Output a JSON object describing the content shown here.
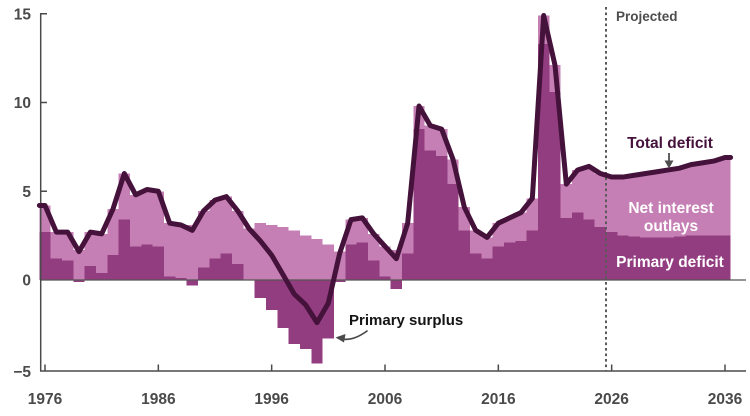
{
  "labels": {
    "projected": "Projected",
    "total_deficit": "Total deficit",
    "net_interest": [
      "Net interest",
      "outlays"
    ],
    "primary_deficit": "Primary deficit",
    "primary_surplus": "Primary surplus"
  },
  "colors": {
    "total_deficit_line": "#44123a",
    "primary_deficit_bar": "#933d81",
    "net_interest_bar": "#c67fb4",
    "axis": "#4a4a4a",
    "zero_line": "#555555",
    "divider": "#5a5a5a",
    "annotation_arrow": "#4f4f4f"
  },
  "chart_data": {
    "type": "bar",
    "description": "Stacked bars (primary deficit + net interest outlays) with total-deficit line overlay; negative bars are primary surpluses",
    "xlim": [
      1976,
      2036
    ],
    "ylim": [
      -5,
      15
    ],
    "x_ticks": [
      1976,
      1986,
      1996,
      2006,
      2016,
      2026,
      2036
    ],
    "y_ticks": [
      15,
      10,
      5,
      0,
      -5
    ],
    "grid": false,
    "legend_position": "inline-annotations",
    "projection_divider_year": 2025.5,
    "years": [
      1976,
      1977,
      1978,
      1979,
      1980,
      1981,
      1982,
      1983,
      1984,
      1985,
      1986,
      1987,
      1988,
      1989,
      1990,
      1991,
      1992,
      1993,
      1994,
      1995,
      1996,
      1997,
      1998,
      1999,
      2000,
      2001,
      2002,
      2003,
      2004,
      2005,
      2006,
      2007,
      2008,
      2009,
      2010,
      2011,
      2012,
      2013,
      2014,
      2015,
      2016,
      2017,
      2018,
      2019,
      2020,
      2021,
      2022,
      2023,
      2024,
      2025,
      2026,
      2027,
      2028,
      2029,
      2030,
      2031,
      2032,
      2033,
      2034,
      2035,
      2036
    ],
    "series": [
      {
        "name": "Total deficit",
        "type": "line",
        "values": [
          4.2,
          2.7,
          2.7,
          1.6,
          2.7,
          2.6,
          4.0,
          6.0,
          4.8,
          5.1,
          5.0,
          3.2,
          3.1,
          2.8,
          3.9,
          4.5,
          4.7,
          3.9,
          2.9,
          2.2,
          1.4,
          0.3,
          -0.8,
          -1.4,
          -2.4,
          -1.3,
          1.5,
          3.4,
          3.5,
          2.6,
          1.9,
          1.2,
          3.2,
          9.8,
          8.7,
          8.5,
          6.8,
          4.1,
          2.8,
          2.4,
          3.2,
          3.5,
          3.8,
          4.6,
          14.9,
          12.1,
          5.4,
          6.2,
          6.4,
          6.0,
          5.8,
          5.8,
          5.9,
          6.0,
          6.1,
          6.2,
          6.3,
          6.5,
          6.6,
          6.7,
          6.9
        ]
      },
      {
        "name": "Primary deficit",
        "type": "bar",
        "values": [
          2.7,
          1.2,
          1.1,
          -0.1,
          0.8,
          0.4,
          1.4,
          3.4,
          1.9,
          2.0,
          1.9,
          0.2,
          0.1,
          -0.3,
          0.7,
          1.2,
          1.5,
          0.9,
          0.0,
          -1.0,
          -1.7,
          -2.7,
          -3.6,
          -3.9,
          -4.7,
          -3.3,
          -0.1,
          2.0,
          2.1,
          1.1,
          0.2,
          -0.5,
          1.5,
          8.5,
          7.3,
          7.0,
          5.4,
          2.8,
          1.5,
          1.2,
          1.9,
          2.1,
          2.2,
          2.8,
          13.3,
          10.6,
          3.5,
          3.8,
          3.4,
          3.0,
          2.7,
          2.5,
          2.45,
          2.4,
          2.4,
          2.4,
          2.45,
          2.5,
          2.5,
          2.5,
          2.5
        ]
      },
      {
        "name": "Net interest outlays",
        "type": "bar",
        "values": [
          1.5,
          1.5,
          1.6,
          1.7,
          1.9,
          2.2,
          2.6,
          2.6,
          2.9,
          3.1,
          3.1,
          3.0,
          3.0,
          3.1,
          3.2,
          3.3,
          3.2,
          3.0,
          2.9,
          3.2,
          3.1,
          3.0,
          2.8,
          2.5,
          2.3,
          2.0,
          1.6,
          1.4,
          1.4,
          1.5,
          1.7,
          1.7,
          1.7,
          1.3,
          1.4,
          1.5,
          1.4,
          1.3,
          1.3,
          1.2,
          1.3,
          1.4,
          1.6,
          1.8,
          1.6,
          1.5,
          1.9,
          2.4,
          3.0,
          3.0,
          3.1,
          3.3,
          3.45,
          3.6,
          3.7,
          3.8,
          3.85,
          4.0,
          4.1,
          4.2,
          4.4
        ]
      }
    ]
  }
}
